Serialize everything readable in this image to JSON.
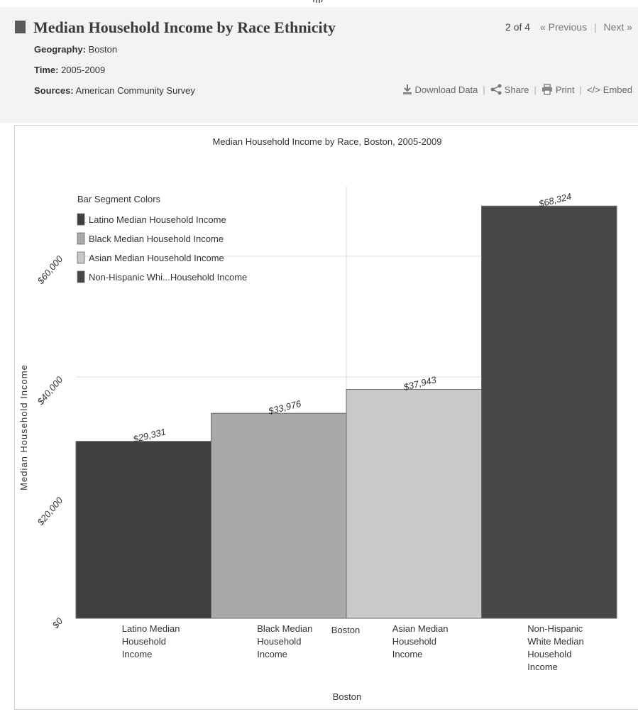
{
  "header": {
    "title": "Median Household Income by Race Ethnicity",
    "geography_label": "Geography:",
    "geography_value": "Boston",
    "time_label": "Time:",
    "time_value": "2005-2009",
    "sources_label": "Sources:",
    "sources_value": "American Community Survey"
  },
  "pager": {
    "count": "2 of 4",
    "previous": "« Previous",
    "next": "Next »"
  },
  "actions": {
    "download": "Download Data",
    "share": "Share",
    "print": "Print",
    "embed": "Embed"
  },
  "colors": {
    "latino": "#3f3f3f",
    "black": "#a9a9a9",
    "asian": "#c9c9c9",
    "white": "#474747",
    "header_bg": "#f3f3f3"
  },
  "chart_data": {
    "type": "bar",
    "title": "Median Household Income by Race, Boston, 2005-2009",
    "xlabel": "Boston",
    "ylabel": "Median Household Income",
    "group_label": "Boston",
    "ylim": [
      0,
      70000
    ],
    "yticks": [
      0,
      20000,
      40000,
      60000
    ],
    "ytick_labels": [
      "$0",
      "$20,000",
      "$40,000",
      "$60,000"
    ],
    "categories": [
      [
        "Latino Median",
        "Household",
        "Income"
      ],
      [
        "Black Median",
        "Household",
        "Income"
      ],
      [
        "Asian Median",
        "Household",
        "Income"
      ],
      [
        "Non-Hispanic",
        "White Median",
        "Household",
        "Income"
      ]
    ],
    "values": [
      29331,
      33976,
      37943,
      68324
    ],
    "value_labels": [
      "$29,331",
      "$33,976",
      "$37,943",
      "$68,324"
    ],
    "legend_title": "Bar Segment Colors",
    "legend": [
      "Latino Median Household Income",
      "Black Median Household Income",
      "Asian Median Household Income",
      "Non-Hispanic Whi...Household Income"
    ],
    "legend_placement": "top-left",
    "grid": true
  }
}
